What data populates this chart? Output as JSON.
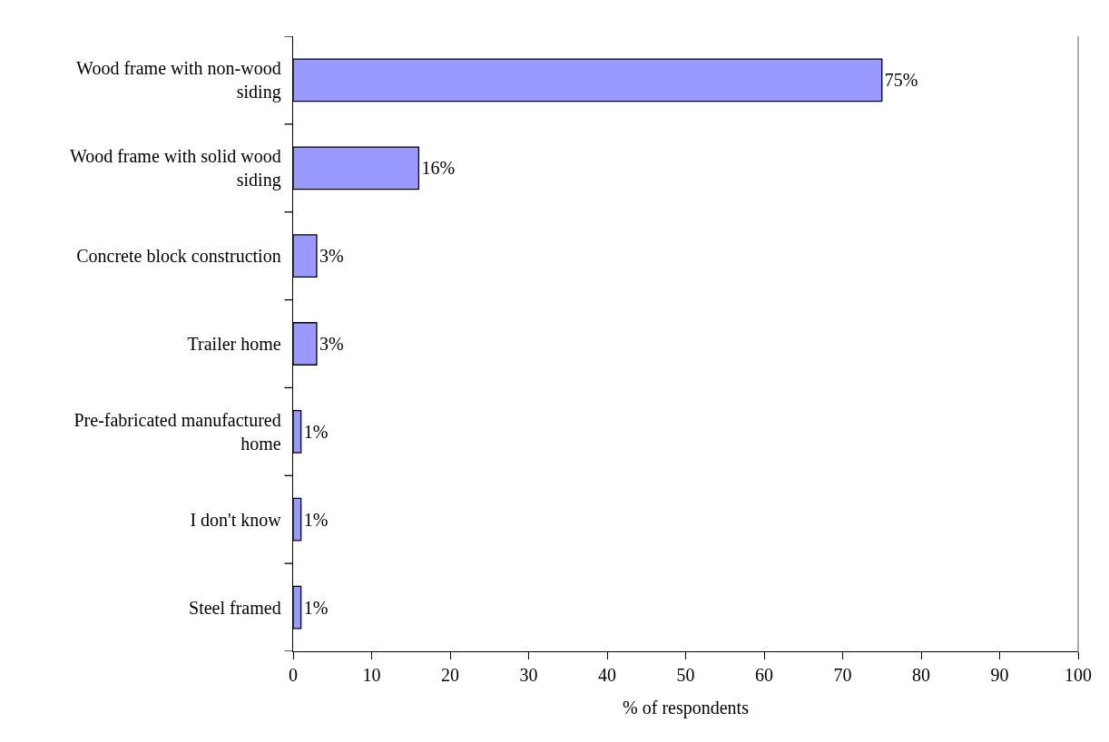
{
  "chart_data": {
    "type": "bar",
    "orientation": "horizontal",
    "xlabel": "% of respondents",
    "categories": [
      "Wood frame with non-wood siding",
      "Wood frame with solid wood siding",
      "Concrete block construction",
      "Trailer home",
      "Pre-fabricated manufactured home",
      "I don't know",
      "Steel framed"
    ],
    "values": [
      75,
      16,
      3,
      3,
      1,
      1,
      1
    ],
    "value_labels": [
      "75%",
      "16%",
      "3%",
      "3%",
      "1%",
      "1%",
      "1%"
    ],
    "color": "#9999ff",
    "xlim": [
      0,
      100
    ],
    "xticks": [
      0,
      10,
      20,
      30,
      40,
      50,
      60,
      70,
      80,
      90,
      100
    ],
    "grid": false,
    "legend": false
  }
}
